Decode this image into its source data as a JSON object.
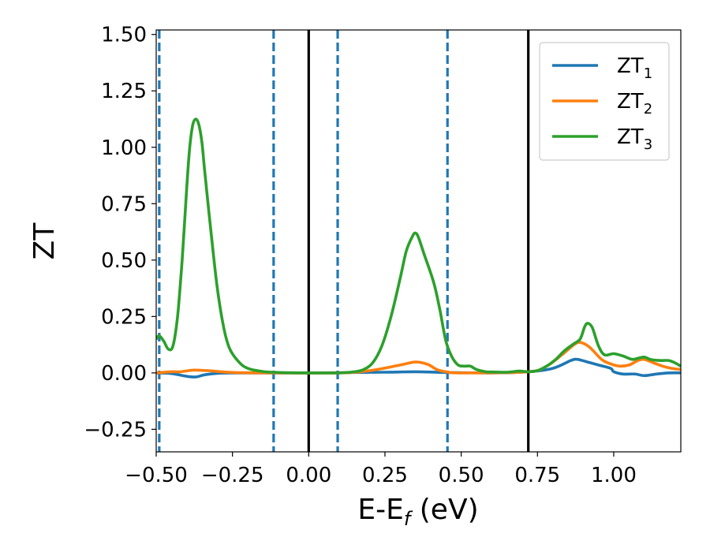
{
  "chart_data": {
    "type": "line",
    "title": "",
    "xlabel_parts": [
      "E-E",
      "f",
      " (eV)"
    ],
    "ylabel": "ZT",
    "xlim": [
      -0.5,
      1.22
    ],
    "ylim": [
      -0.35,
      1.52
    ],
    "x_ticks": [
      -0.5,
      -0.25,
      0.0,
      0.25,
      0.5,
      0.75,
      1.0
    ],
    "x_tick_labels": [
      "−0.50",
      "−0.25",
      "0.00",
      "0.25",
      "0.50",
      "0.75",
      "1.00"
    ],
    "y_ticks": [
      -0.25,
      0.0,
      0.25,
      0.5,
      0.75,
      1.0,
      1.25,
      1.5
    ],
    "y_tick_labels": [
      "−0.25",
      "0.00",
      "0.25",
      "0.50",
      "0.75",
      "1.00",
      "1.25",
      "1.50"
    ],
    "grid": false,
    "legend_position": "top-right",
    "vlines_solid": [
      0.0,
      0.72
    ],
    "vlines_dashed": [
      -0.49,
      -0.115,
      0.095,
      0.455
    ],
    "series": [
      {
        "name": "ZT",
        "sub": "1",
        "color": "#1f77b4",
        "points": [
          [
            -0.5,
            0.0
          ],
          [
            -0.45,
            -0.003
          ],
          [
            -0.4,
            -0.015
          ],
          [
            -0.37,
            -0.018
          ],
          [
            -0.34,
            -0.008
          ],
          [
            -0.3,
            -0.002
          ],
          [
            -0.25,
            0.0
          ],
          [
            0.0,
            0.0
          ],
          [
            0.25,
            0.003
          ],
          [
            0.35,
            0.005
          ],
          [
            0.45,
            0.002
          ],
          [
            0.6,
            0.0
          ],
          [
            0.72,
            0.005
          ],
          [
            0.8,
            0.02
          ],
          [
            0.86,
            0.055
          ],
          [
            0.88,
            0.06
          ],
          [
            0.91,
            0.05
          ],
          [
            0.95,
            0.035
          ],
          [
            0.99,
            0.02
          ],
          [
            1.0,
            0.005
          ],
          [
            1.03,
            -0.005
          ],
          [
            1.07,
            -0.005
          ],
          [
            1.1,
            -0.012
          ],
          [
            1.14,
            -0.005
          ],
          [
            1.18,
            0.0
          ],
          [
            1.22,
            0.0
          ]
        ]
      },
      {
        "name": "ZT",
        "sub": "2",
        "color": "#ff7f0e",
        "points": [
          [
            -0.5,
            0.0
          ],
          [
            -0.45,
            0.005
          ],
          [
            -0.42,
            0.005
          ],
          [
            -0.38,
            0.012
          ],
          [
            -0.33,
            0.01
          ],
          [
            -0.25,
            0.002
          ],
          [
            -0.1,
            0.0
          ],
          [
            0.1,
            0.0
          ],
          [
            0.2,
            0.01
          ],
          [
            0.3,
            0.035
          ],
          [
            0.35,
            0.048
          ],
          [
            0.39,
            0.038
          ],
          [
            0.42,
            0.015
          ],
          [
            0.45,
            0.005
          ],
          [
            0.5,
            0.0
          ],
          [
            0.72,
            0.005
          ],
          [
            0.78,
            0.03
          ],
          [
            0.83,
            0.08
          ],
          [
            0.87,
            0.125
          ],
          [
            0.89,
            0.135
          ],
          [
            0.92,
            0.115
          ],
          [
            0.96,
            0.06
          ],
          [
            0.99,
            0.04
          ],
          [
            1.02,
            0.03
          ],
          [
            1.05,
            0.035
          ],
          [
            1.08,
            0.055
          ],
          [
            1.1,
            0.06
          ],
          [
            1.13,
            0.045
          ],
          [
            1.16,
            0.03
          ],
          [
            1.19,
            0.02
          ],
          [
            1.22,
            0.015
          ]
        ]
      },
      {
        "name": "ZT",
        "sub": "3",
        "color": "#2ca02c",
        "points": [
          [
            -0.5,
            0.15
          ],
          [
            -0.49,
            0.165
          ],
          [
            -0.475,
            0.14
          ],
          [
            -0.46,
            0.105
          ],
          [
            -0.445,
            0.12
          ],
          [
            -0.43,
            0.25
          ],
          [
            -0.415,
            0.5
          ],
          [
            -0.4,
            0.82
          ],
          [
            -0.39,
            1.0
          ],
          [
            -0.38,
            1.1
          ],
          [
            -0.37,
            1.125
          ],
          [
            -0.36,
            1.1
          ],
          [
            -0.35,
            1.02
          ],
          [
            -0.34,
            0.88
          ],
          [
            -0.32,
            0.62
          ],
          [
            -0.3,
            0.38
          ],
          [
            -0.28,
            0.21
          ],
          [
            -0.26,
            0.11
          ],
          [
            -0.23,
            0.05
          ],
          [
            -0.2,
            0.02
          ],
          [
            -0.15,
            0.006
          ],
          [
            -0.1,
            0.002
          ],
          [
            0.0,
            0.0
          ],
          [
            0.1,
            0.0
          ],
          [
            0.15,
            0.005
          ],
          [
            0.18,
            0.015
          ],
          [
            0.21,
            0.045
          ],
          [
            0.24,
            0.12
          ],
          [
            0.27,
            0.25
          ],
          [
            0.3,
            0.42
          ],
          [
            0.32,
            0.54
          ],
          [
            0.34,
            0.605
          ],
          [
            0.35,
            0.62
          ],
          [
            0.36,
            0.6
          ],
          [
            0.38,
            0.52
          ],
          [
            0.41,
            0.4
          ],
          [
            0.43,
            0.28
          ],
          [
            0.45,
            0.14
          ],
          [
            0.47,
            0.07
          ],
          [
            0.49,
            0.035
          ],
          [
            0.51,
            0.03
          ],
          [
            0.53,
            0.03
          ],
          [
            0.55,
            0.015
          ],
          [
            0.58,
            0.005
          ],
          [
            0.6,
            0.004
          ],
          [
            0.65,
            0.003
          ],
          [
            0.69,
            0.008
          ],
          [
            0.72,
            0.005
          ],
          [
            0.75,
            0.01
          ],
          [
            0.78,
            0.03
          ],
          [
            0.81,
            0.06
          ],
          [
            0.84,
            0.1
          ],
          [
            0.87,
            0.13
          ],
          [
            0.89,
            0.15
          ],
          [
            0.905,
            0.205
          ],
          [
            0.915,
            0.22
          ],
          [
            0.93,
            0.2
          ],
          [
            0.95,
            0.12
          ],
          [
            0.97,
            0.08
          ],
          [
            1.0,
            0.085
          ],
          [
            1.03,
            0.075
          ],
          [
            1.06,
            0.06
          ],
          [
            1.08,
            0.065
          ],
          [
            1.1,
            0.07
          ],
          [
            1.12,
            0.06
          ],
          [
            1.15,
            0.055
          ],
          [
            1.18,
            0.055
          ],
          [
            1.2,
            0.045
          ],
          [
            1.22,
            0.03
          ]
        ]
      }
    ]
  }
}
